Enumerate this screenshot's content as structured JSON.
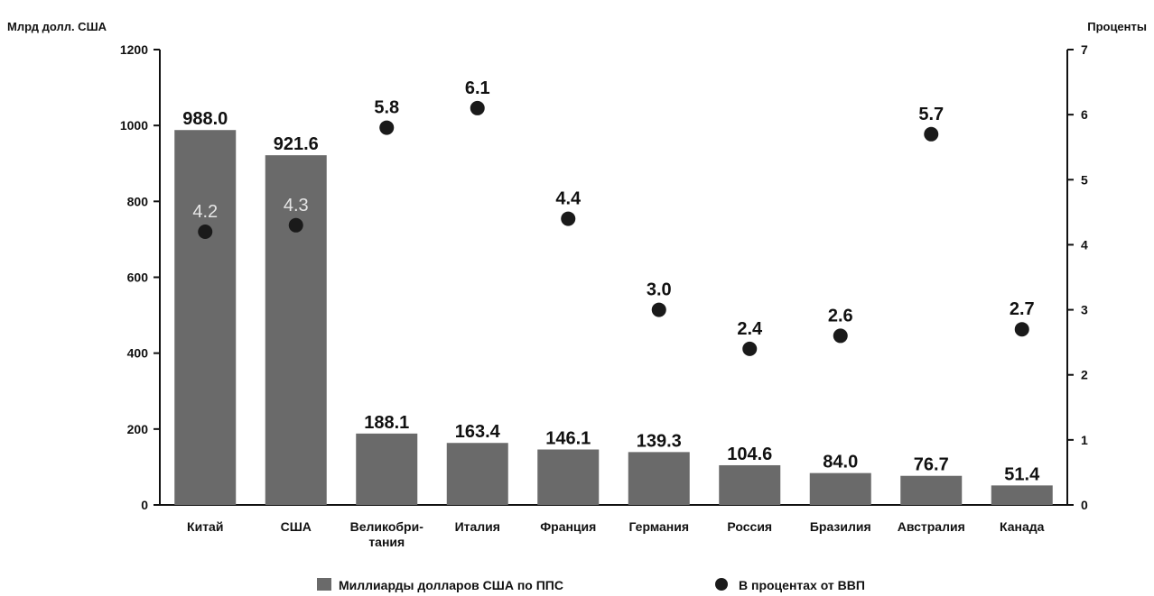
{
  "chart_data": {
    "type": "bar",
    "left_axis_label": "Млрд долл. США",
    "right_axis_label": "Проценты",
    "categories": [
      "Китай",
      "США",
      "Великобри-тания",
      "Италия",
      "Франция",
      "Германия",
      "Россия",
      "Бразилия",
      "Австралия",
      "Канада"
    ],
    "category_lines": [
      [
        "Китай"
      ],
      [
        "США"
      ],
      [
        "Великобри-",
        "тания"
      ],
      [
        "Италия"
      ],
      [
        "Франция"
      ],
      [
        "Германия"
      ],
      [
        "Россия"
      ],
      [
        "Бразилия"
      ],
      [
        "Австралия"
      ],
      [
        "Канада"
      ]
    ],
    "series": [
      {
        "name": "Миллиарды долларов США по ППС",
        "type": "bar",
        "axis": "left",
        "values": [
          988.0,
          921.6,
          188.1,
          163.4,
          146.1,
          139.3,
          104.6,
          84.0,
          76.7,
          51.4
        ],
        "labels": [
          "988.0",
          "921.6",
          "188.1",
          "163.4",
          "146.1",
          "139.3",
          "104.6",
          "84.0",
          "76.7",
          "51.4"
        ],
        "color": "#6a6a6a"
      },
      {
        "name": "В процентах от ВВП",
        "type": "scatter",
        "axis": "right",
        "values": [
          4.2,
          4.3,
          5.8,
          6.1,
          4.4,
          3.0,
          2.4,
          2.6,
          5.7,
          2.7
        ],
        "labels": [
          "4.2",
          "4.3",
          "5.8",
          "6.1",
          "4.4",
          "3.0",
          "2.4",
          "2.6",
          "5.7",
          "2.7"
        ],
        "color": "#1a1a1a"
      }
    ],
    "left_ylim": [
      0,
      1200
    ],
    "left_ticks": [
      0,
      200,
      400,
      600,
      800,
      1000,
      1200
    ],
    "right_ylim": [
      0,
      7
    ],
    "right_ticks": [
      0,
      1,
      2,
      3,
      4,
      5,
      6,
      7
    ],
    "grid": false,
    "legend_position": "bottom-center"
  }
}
